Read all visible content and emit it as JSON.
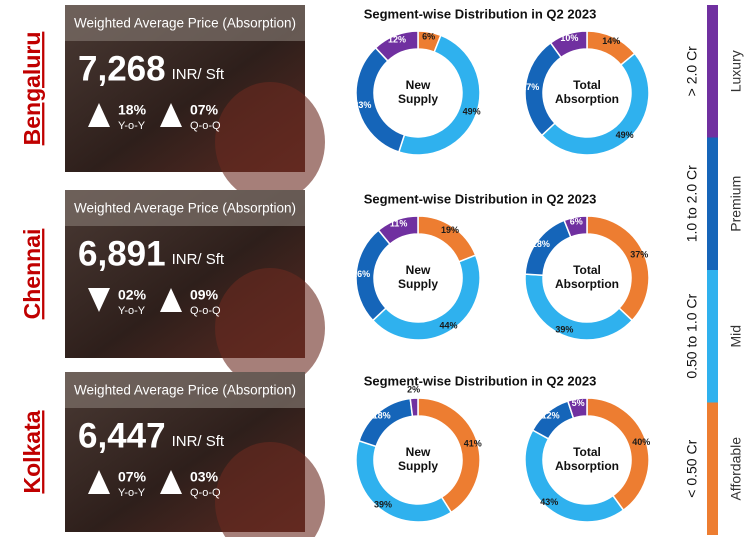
{
  "legend": [
    {
      "name": "Affordable",
      "range": "< 0.50 Cr",
      "color": "#ed7d31"
    },
    {
      "name": "Mid",
      "range": "0.50 to 1.0 Cr",
      "color": "#2fb1ee"
    },
    {
      "name": "Premium",
      "range": "1.0 to 2.0 Cr",
      "color": "#1565b9"
    },
    {
      "name": "Luxury",
      "range": "> 2.0 Cr",
      "color": "#7030a0"
    }
  ],
  "cities": [
    {
      "name": "Bengaluru",
      "price_title": "Weighted Average Price (Absorption)",
      "price": "7,268",
      "unit": "INR/ Sft",
      "yoy": {
        "direction": "up",
        "value": "18%",
        "label": "Y-o-Y"
      },
      "qoq": {
        "direction": "up",
        "value": "07%",
        "label": "Q-o-Q"
      },
      "distribution_title": "Segment-wise Distribution in Q2 2023",
      "charts": [
        {
          "type": "pie",
          "label": [
            "New",
            "Supply"
          ],
          "values": [
            6,
            49,
            33,
            12
          ],
          "value_labels": [
            "6%",
            "49%",
            "33%",
            "12%"
          ]
        },
        {
          "type": "pie",
          "label": [
            "Total",
            "Absorption"
          ],
          "values": [
            14,
            49,
            27,
            10
          ],
          "value_labels": [
            "14%",
            "49%",
            "27%",
            "10%"
          ]
        }
      ]
    },
    {
      "name": "Chennai",
      "price_title": "Weighted Average Price (Absorption)",
      "price": "6,891",
      "unit": "INR/ Sft",
      "yoy": {
        "direction": "down",
        "value": "02%",
        "label": "Y-o-Y"
      },
      "qoq": {
        "direction": "up",
        "value": "09%",
        "label": "Q-o-Q"
      },
      "distribution_title": "Segment-wise Distribution in Q2 2023",
      "charts": [
        {
          "type": "pie",
          "label": [
            "New",
            "Supply"
          ],
          "values": [
            19,
            44,
            26,
            11
          ],
          "value_labels": [
            "19%",
            "44%",
            "26%",
            "11%"
          ]
        },
        {
          "type": "pie",
          "label": [
            "Total",
            "Absorption"
          ],
          "values": [
            37,
            39,
            18,
            6
          ],
          "value_labels": [
            "37%",
            "39%",
            "18%",
            "6%"
          ]
        }
      ]
    },
    {
      "name": "Kolkata",
      "price_title": "Weighted Average Price (Absorption)",
      "price": "6,447",
      "unit": "INR/ Sft",
      "yoy": {
        "direction": "up",
        "value": "07%",
        "label": "Y-o-Y"
      },
      "qoq": {
        "direction": "up",
        "value": "03%",
        "label": "Q-o-Q"
      },
      "distribution_title": "Segment-wise Distribution in Q2 2023",
      "charts": [
        {
          "type": "pie",
          "label": [
            "New",
            "Supply"
          ],
          "values": [
            41,
            39,
            18,
            2
          ],
          "value_labels": [
            "41%",
            "39%",
            "18%",
            "2%"
          ]
        },
        {
          "type": "pie",
          "label": [
            "Total",
            "Absorption"
          ],
          "values": [
            40,
            43,
            12,
            5
          ],
          "value_labels": [
            "40%",
            "43%",
            "12%",
            "5%"
          ]
        }
      ]
    }
  ]
}
